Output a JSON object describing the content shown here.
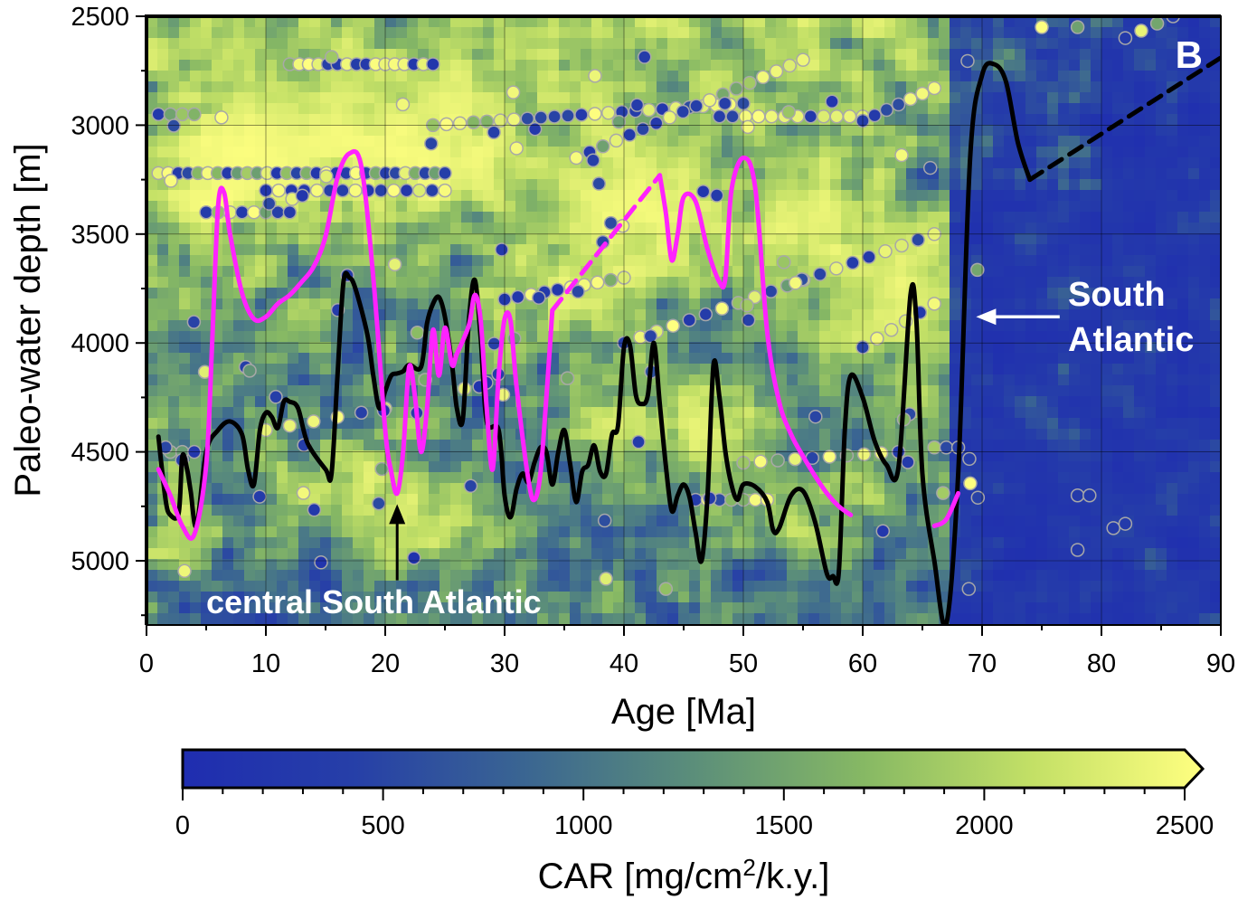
{
  "chart_data": {
    "type": "heatmap",
    "panel_label": "B",
    "xlabel": "Age [Ma]",
    "ylabel": "Paleo-water depth [m]",
    "xlim": [
      0,
      90
    ],
    "ylim": [
      5300,
      2500
    ],
    "x_ticks": [
      0,
      10,
      20,
      30,
      40,
      50,
      60,
      70,
      80,
      90
    ],
    "y_ticks": [
      2500,
      3000,
      3500,
      4000,
      4500,
      5000
    ],
    "grid": true,
    "colorbar": {
      "label_prefix": "CAR [mg/cm",
      "label_sup": "2",
      "label_suffix": "/k.y.]",
      "ticks": [
        0,
        500,
        1000,
        1500,
        2000,
        2500
      ],
      "range": [
        0,
        2500
      ],
      "extend": "max",
      "colors": [
        "#1f2db0",
        "#263fa8",
        "#3a6592",
        "#5b8e7a",
        "#86b864",
        "#c3e066",
        "#ffff80"
      ]
    },
    "annotations": [
      {
        "text": "central South Atlantic",
        "color": "#ffffff",
        "arrow_x": 21,
        "arrow_from_y": 5090,
        "arrow_to_y": 4740
      },
      {
        "text_lines": [
          "South",
          "Atlantic"
        ],
        "color": "#ffffff",
        "arrow_x_from": 76.5,
        "arrow_x_to": 69.5,
        "arrow_y": 3880
      }
    ],
    "series": [
      {
        "color": "#000000",
        "segments": [
          {
            "style": "solid",
            "points": [
              [
                1,
                4430
              ],
              [
                1.6,
                4720
              ],
              [
                2,
                4790
              ],
              [
                2.7,
                4780
              ],
              [
                3,
                4520
              ],
              [
                3.4,
                4580
              ],
              [
                3.7,
                4680
              ],
              [
                4.2,
                4840
              ],
              [
                5,
                4500
              ],
              [
                6,
                4400
              ],
              [
                7,
                4360
              ],
              [
                8,
                4420
              ],
              [
                8.5,
                4580
              ],
              [
                9,
                4650
              ],
              [
                9.5,
                4400
              ],
              [
                10,
                4320
              ],
              [
                10.5,
                4340
              ],
              [
                11,
                4390
              ],
              [
                11.5,
                4270
              ],
              [
                12,
                4270
              ],
              [
                12.7,
                4300
              ],
              [
                13.5,
                4460
              ],
              [
                15,
                4580
              ],
              [
                15.5,
                4600
              ],
              [
                16,
                4150
              ],
              [
                16.5,
                3720
              ],
              [
                17,
                3700
              ],
              [
                17.5,
                3750
              ],
              [
                18.5,
                3960
              ],
              [
                19,
                4150
              ],
              [
                19.5,
                4300
              ],
              [
                20,
                4220
              ],
              [
                20.5,
                4150
              ],
              [
                21,
                4140
              ],
              [
                21.5,
                4130
              ],
              [
                22,
                4100
              ],
              [
                23,
                4110
              ],
              [
                23.5,
                3910
              ],
              [
                24,
                3820
              ],
              [
                24.5,
                3790
              ],
              [
                25,
                3880
              ],
              [
                25.6,
                4100
              ],
              [
                26,
                4300
              ],
              [
                26.5,
                4350
              ],
              [
                27,
                3900
              ],
              [
                27.5,
                3710
              ],
              [
                28,
                3980
              ],
              [
                28.5,
                4360
              ],
              [
                29.5,
                4400
              ],
              [
                30,
                4700
              ],
              [
                30.5,
                4800
              ],
              [
                31,
                4670
              ],
              [
                31.5,
                4600
              ],
              [
                32,
                4640
              ],
              [
                32.5,
                4550
              ],
              [
                33,
                4480
              ],
              [
                33.5,
                4500
              ],
              [
                34,
                4650
              ],
              [
                34.5,
                4500
              ],
              [
                35,
                4400
              ],
              [
                35.5,
                4560
              ],
              [
                36,
                4730
              ],
              [
                36.5,
                4590
              ],
              [
                37,
                4560
              ],
              [
                37.5,
                4470
              ],
              [
                38,
                4590
              ],
              [
                38.5,
                4600
              ],
              [
                39,
                4420
              ],
              [
                39.5,
                4380
              ],
              [
                40,
                4020
              ],
              [
                40.5,
                4010
              ],
              [
                41,
                4240
              ],
              [
                41.5,
                4280
              ],
              [
                42,
                4240
              ],
              [
                42.5,
                4000
              ],
              [
                43,
                4280
              ],
              [
                43.5,
                4560
              ],
              [
                44,
                4770
              ],
              [
                44.5,
                4700
              ],
              [
                45,
                4650
              ],
              [
                45.5,
                4710
              ],
              [
                46,
                4870
              ],
              [
                46.5,
                5000
              ],
              [
                47,
                4700
              ],
              [
                47.5,
                4100
              ],
              [
                48,
                4250
              ],
              [
                48.5,
                4500
              ],
              [
                49,
                4650
              ],
              [
                49.5,
                4720
              ],
              [
                50,
                4650
              ],
              [
                51,
                4660
              ],
              [
                52,
                4730
              ],
              [
                52.5,
                4860
              ],
              [
                53,
                4850
              ],
              [
                54,
                4700
              ],
              [
                55,
                4680
              ],
              [
                56,
                4820
              ],
              [
                57,
                5060
              ],
              [
                57.5,
                5070
              ],
              [
                58,
                5050
              ],
              [
                58.5,
                4400
              ],
              [
                59,
                4150
              ],
              [
                60,
                4250
              ],
              [
                61,
                4450
              ],
              [
                62,
                4560
              ],
              [
                63,
                4570
              ],
              [
                64,
                3780
              ],
              [
                64.5,
                3900
              ],
              [
                65,
                4600
              ],
              [
                66,
                5000
              ],
              [
                67,
                5290
              ],
              [
                68,
                4600
              ],
              [
                69,
                3150
              ],
              [
                70,
                2770
              ],
              [
                71,
                2720
              ],
              [
                72,
                2800
              ],
              [
                73,
                3080
              ],
              [
                74,
                3250
              ]
            ]
          },
          {
            "style": "dashed",
            "points": [
              [
                74,
                3250
              ],
              [
                90,
                2690
              ]
            ]
          }
        ]
      },
      {
        "color": "#ff22ff",
        "segments": [
          {
            "style": "solid",
            "points": [
              [
                1,
                4580
              ],
              [
                2,
                4700
              ],
              [
                3,
                4840
              ],
              [
                4,
                4880
              ],
              [
                5,
                4560
              ],
              [
                5.5,
                4000
              ],
              [
                6,
                3370
              ],
              [
                6.5,
                3310
              ],
              [
                7,
                3500
              ],
              [
                8,
                3770
              ],
              [
                9,
                3890
              ],
              [
                10,
                3880
              ],
              [
                11,
                3820
              ],
              [
                12,
                3780
              ],
              [
                13,
                3720
              ],
              [
                14,
                3650
              ],
              [
                15,
                3510
              ],
              [
                16,
                3240
              ],
              [
                17,
                3130
              ],
              [
                18,
                3190
              ],
              [
                19,
                3700
              ],
              [
                20,
                4400
              ],
              [
                20.5,
                4590
              ],
              [
                21,
                4690
              ],
              [
                21.5,
                4500
              ],
              [
                22,
                4110
              ],
              [
                22.5,
                4250
              ],
              [
                23,
                4500
              ],
              [
                23.5,
                4300
              ],
              [
                24,
                3940
              ],
              [
                24.5,
                4150
              ],
              [
                25,
                3930
              ],
              [
                25.6,
                4100
              ],
              [
                26,
                4050
              ],
              [
                27,
                3920
              ],
              [
                27.5,
                3780
              ],
              [
                28,
                3900
              ],
              [
                28.5,
                4300
              ],
              [
                29,
                4580
              ],
              [
                29.5,
                4150
              ],
              [
                30,
                3890
              ],
              [
                30.5,
                3900
              ],
              [
                31,
                4200
              ],
              [
                32,
                4630
              ],
              [
                32.5,
                4720
              ],
              [
                33,
                4600
              ],
              [
                33.5,
                4250
              ],
              [
                34,
                3850
              ]
            ]
          },
          {
            "style": "dashed",
            "points": [
              [
                34,
                3850
              ],
              [
                43,
                3230
              ]
            ]
          },
          {
            "style": "solid",
            "points": [
              [
                43,
                3230
              ],
              [
                43.5,
                3400
              ],
              [
                44,
                3620
              ],
              [
                44.5,
                3500
              ],
              [
                45,
                3330
              ],
              [
                46,
                3350
              ],
              [
                47,
                3570
              ],
              [
                48,
                3720
              ],
              [
                48.5,
                3700
              ],
              [
                49,
                3300
              ],
              [
                50,
                3150
              ],
              [
                51,
                3290
              ],
              [
                52,
                3950
              ],
              [
                53,
                4270
              ],
              [
                54,
                4420
              ],
              [
                55,
                4520
              ],
              [
                56,
                4610
              ],
              [
                57,
                4690
              ],
              [
                58,
                4750
              ],
              [
                59,
                4790
              ]
            ]
          },
          {
            "style": "solid",
            "points": [
              [
                66,
                4840
              ],
              [
                67,
                4810
              ],
              [
                68,
                4690
              ]
            ]
          }
        ]
      }
    ]
  }
}
